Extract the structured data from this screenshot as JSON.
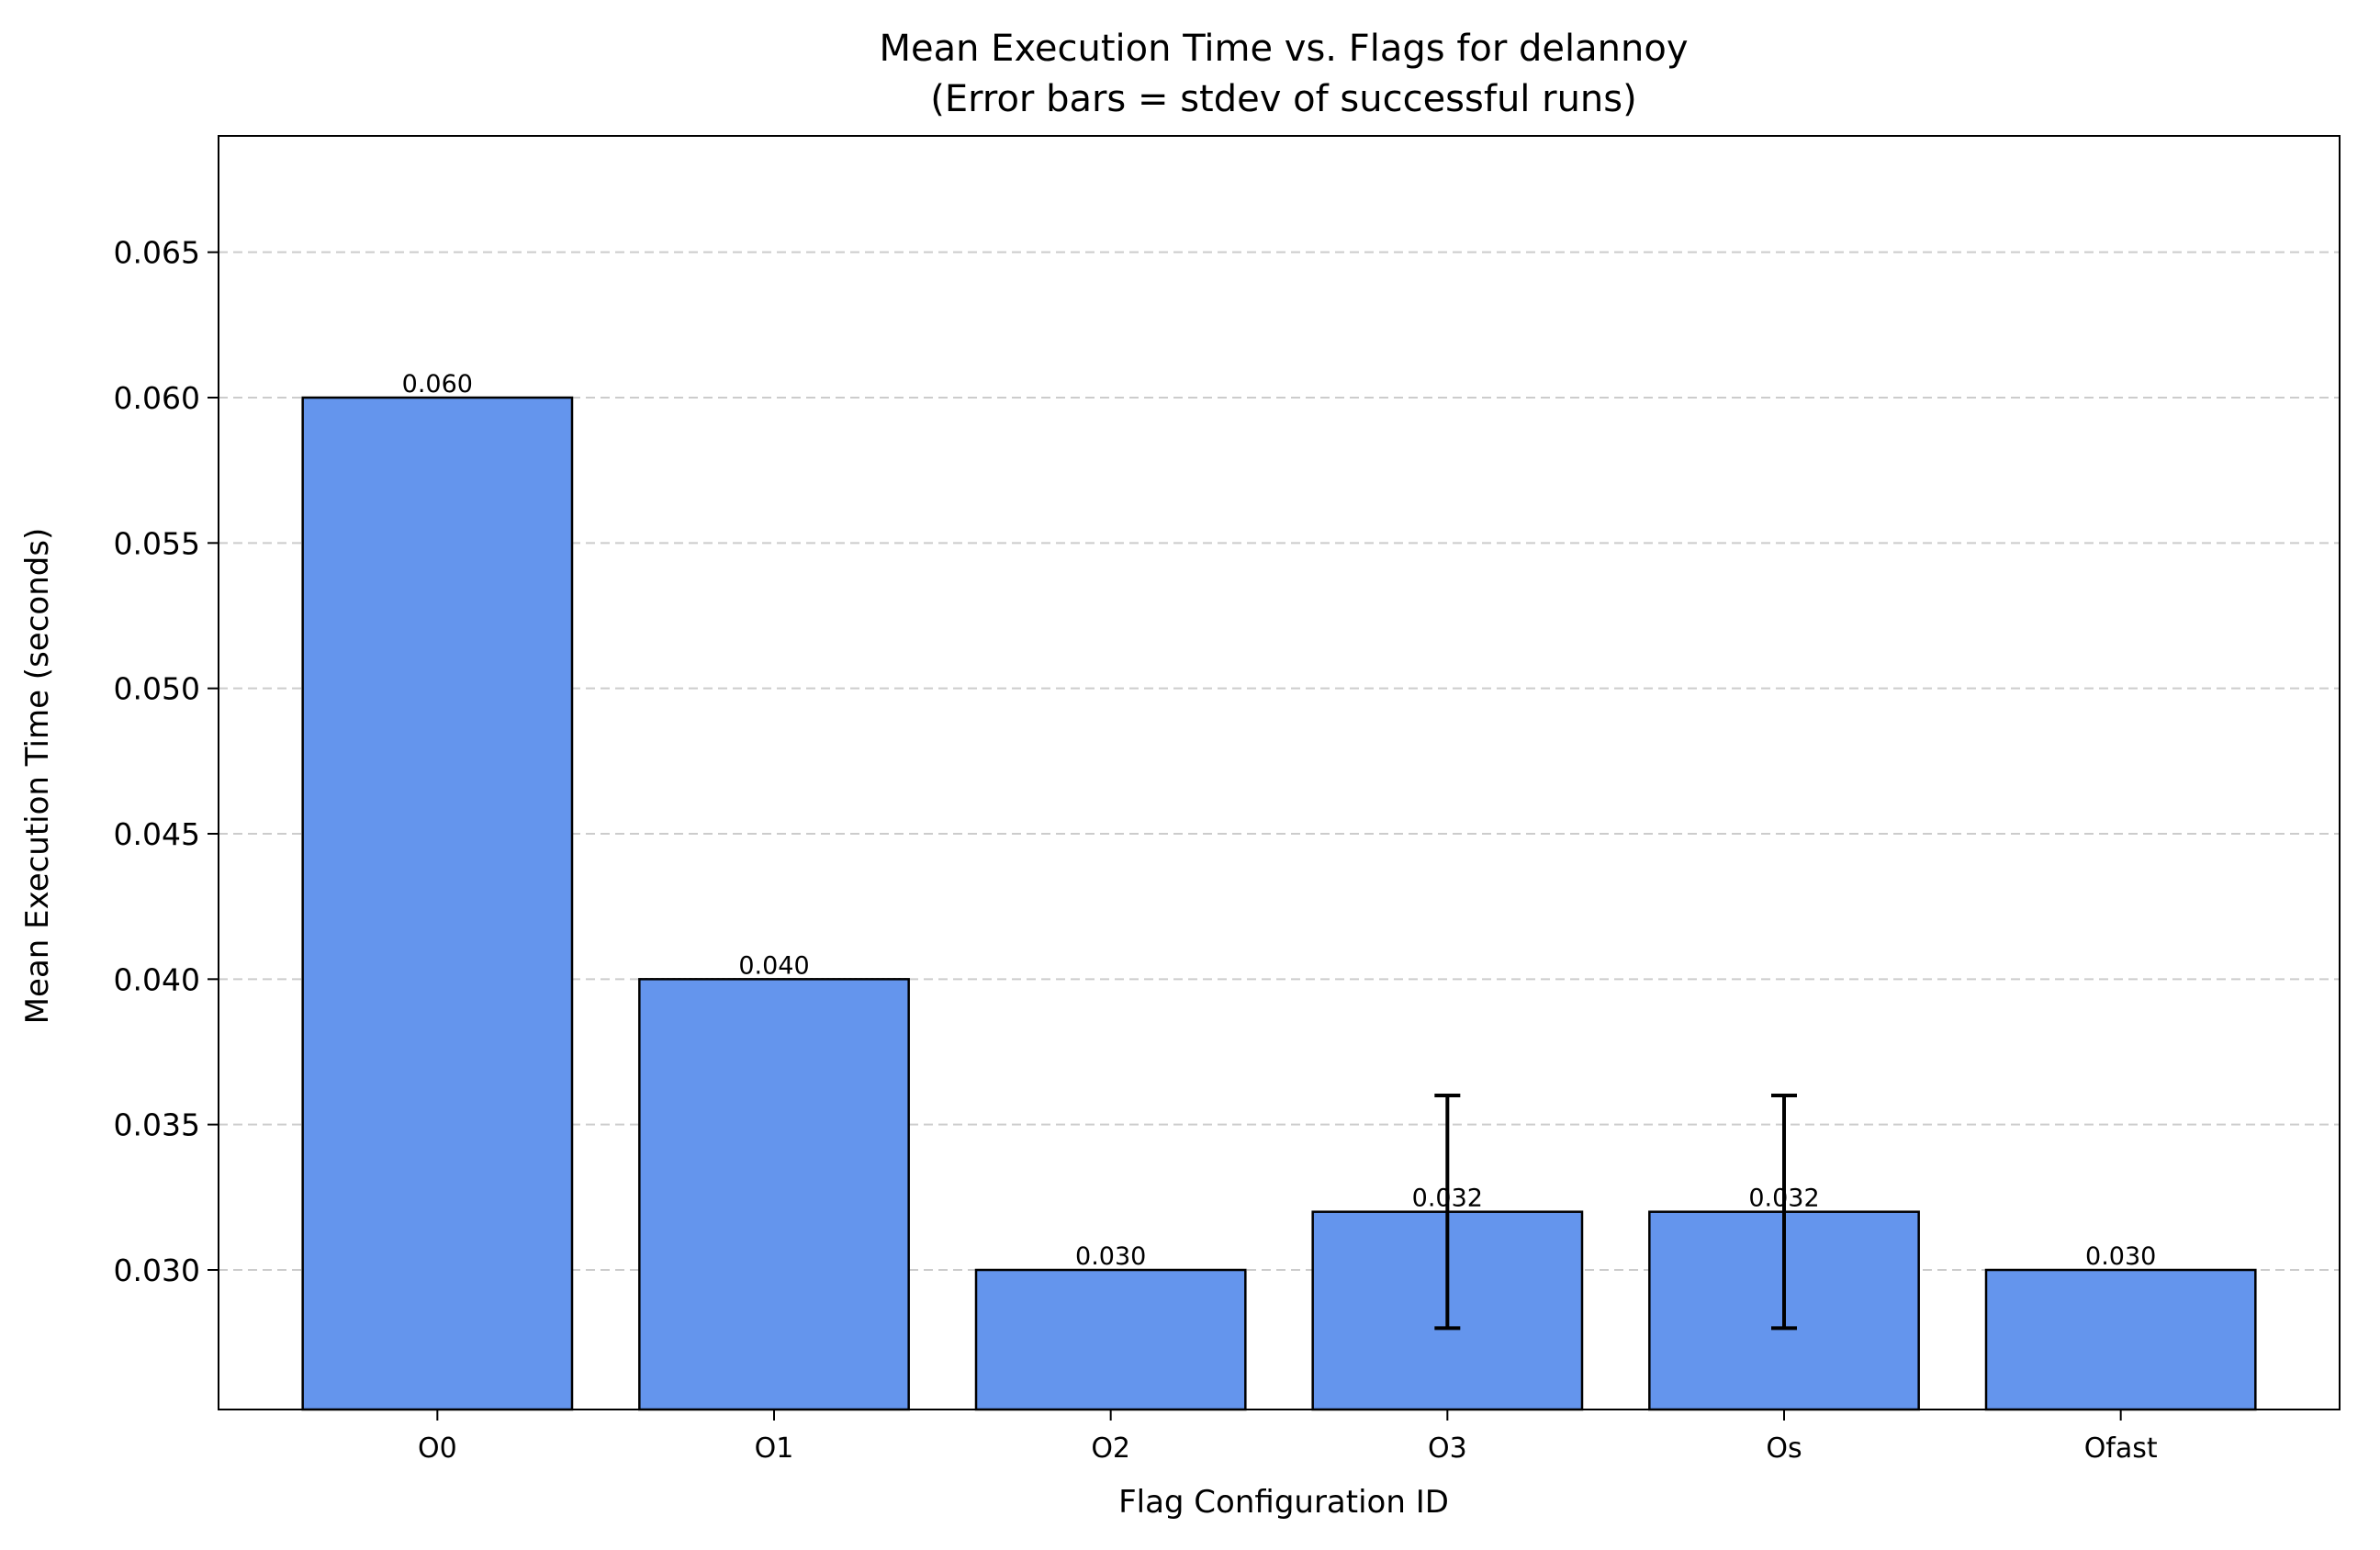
{
  "chart_data": {
    "type": "bar",
    "title": "Mean Execution Time vs. Flags for delannoy",
    "subtitle": "(Error bars = stdev of successful runs)",
    "xlabel": "Flag Configuration ID",
    "ylabel": "Mean Execution Time (seconds)",
    "categories": [
      "O0",
      "O1",
      "O2",
      "O3",
      "Os",
      "Ofast"
    ],
    "values": [
      0.06,
      0.04,
      0.03,
      0.032,
      0.032,
      0.03
    ],
    "errors": [
      0.0,
      0.0,
      0.0,
      0.004,
      0.004,
      0.0
    ],
    "value_labels": [
      "0.060",
      "0.040",
      "0.030",
      "0.032",
      "0.032",
      "0.030"
    ],
    "ylim": [
      0.0252,
      0.069
    ],
    "yticks": [
      0.03,
      0.035,
      0.04,
      0.045,
      0.05,
      0.055,
      0.06,
      0.065
    ],
    "ytick_labels": [
      "0.030",
      "0.035",
      "0.040",
      "0.045",
      "0.050",
      "0.055",
      "0.060",
      "0.065"
    ],
    "grid": "y-dashed",
    "colors": {
      "bar": "#6495ED",
      "edge": "#000000",
      "grid": "#cccccc",
      "error": "#000000"
    }
  }
}
